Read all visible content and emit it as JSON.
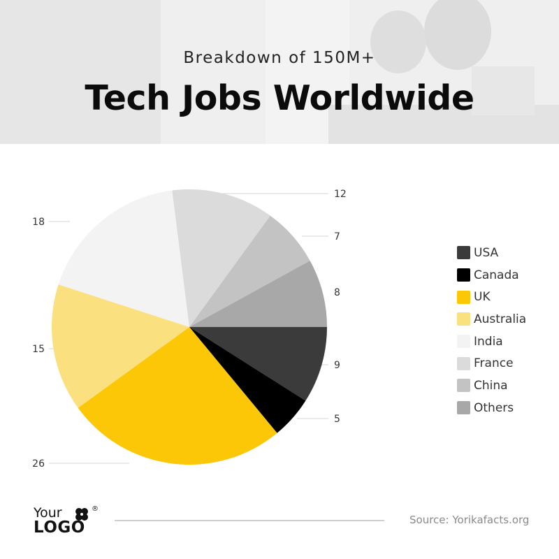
{
  "header": {
    "subtitle": "Breakdown of 150M+",
    "title": "Tech Jobs Worldwide"
  },
  "chart_data": {
    "type": "pie",
    "title": "Tech Jobs Worldwide",
    "subtitle": "Breakdown of 150M+",
    "start": "3 o'clock, clockwise",
    "legend_position": "right",
    "slices": [
      {
        "label": "USA",
        "value": 9,
        "color": "#3b3b3b"
      },
      {
        "label": "Canada",
        "value": 5,
        "color": "#000000"
      },
      {
        "label": "UK",
        "value": 26,
        "color": "#fbc707"
      },
      {
        "label": "Australia",
        "value": 15,
        "color": "#fbe080"
      },
      {
        "label": "India",
        "value": 18,
        "color": "#f3f3f3"
      },
      {
        "label": "France",
        "value": 12,
        "color": "#dbdbdb"
      },
      {
        "label": "China",
        "value": 7,
        "color": "#c3c3c3"
      },
      {
        "label": "Others",
        "value": 8,
        "color": "#a8a8a8"
      }
    ]
  },
  "logo": {
    "line1": "Your",
    "line2": "LOGO",
    "registered": "®"
  },
  "footer": {
    "source": "Source: Yorikafacts.org"
  }
}
